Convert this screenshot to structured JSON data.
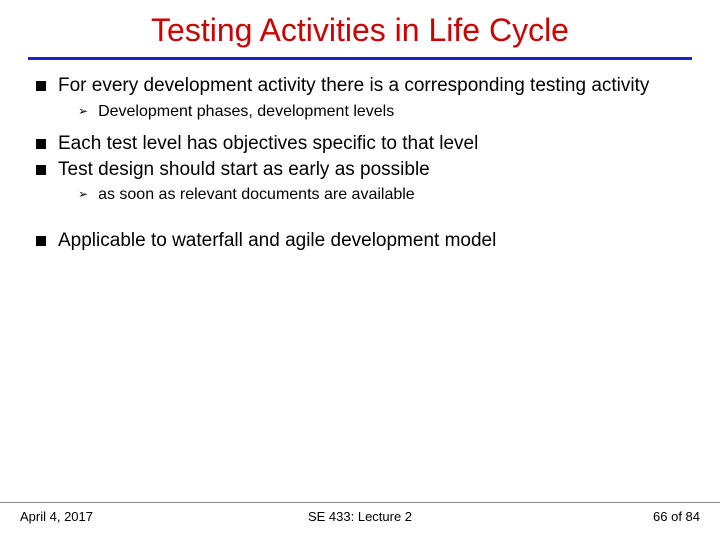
{
  "title": "Testing Activities in Life Cycle",
  "title_color": "#cc0000",
  "title_fontsize": 32,
  "rule_color": "#2020cc",
  "body_fontsize": 19,
  "sub_fontsize": 16,
  "bullets": [
    {
      "text": "For every development activity there is a corresponding testing activity",
      "sub": [
        "Development phases, development levels"
      ]
    },
    {
      "text": "Each test level has objectives specific to that level",
      "sub": []
    },
    {
      "text": "Test design should start as early as possible",
      "sub": [
        "as soon as relevant documents are available"
      ]
    }
  ],
  "bullets_after_gap": [
    {
      "text": "Applicable to waterfall and agile development model",
      "sub": []
    }
  ],
  "footer": {
    "date": "April 4, 2017",
    "course": "SE 433: Lecture 2",
    "page": "66 of 84"
  },
  "colors": {
    "background": "#ffffff",
    "text": "#000000",
    "footer_rule": "#888888"
  }
}
